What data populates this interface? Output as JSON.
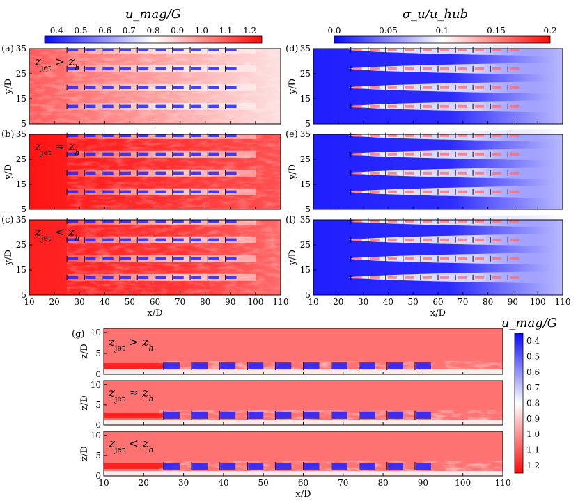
{
  "colorbars": [
    {
      "id": "umag",
      "title": "u_mag/G",
      "ticks": [
        "0.4",
        "0.5",
        "0.6",
        "0.7",
        "0.8",
        "0.9",
        "1.0",
        "1.1",
        "1.2"
      ],
      "range": [
        0.35,
        1.25
      ],
      "colors": [
        "#0a0aff",
        "#ffffff",
        "#ff0a0a"
      ]
    },
    {
      "id": "sigma",
      "title": "σ_u/u_hub",
      "ticks": [
        "0.0",
        "0.05",
        "0.1",
        "0.15",
        "0.2"
      ],
      "range": [
        0,
        0.2
      ],
      "colors": [
        "#0a0aff",
        "#ffffff",
        "#ff0a0a"
      ]
    },
    {
      "id": "umag-g",
      "title": "u_mag/G",
      "ticks": [
        "0.4",
        "0.5",
        "0.6",
        "0.7",
        "0.8",
        "0.9",
        "1.0",
        "1.1",
        "1.2"
      ],
      "range": [
        0.35,
        1.25
      ],
      "colors": [
        "#0a0aff",
        "#ffffff",
        "#ff0a0a"
      ],
      "orientation": "vertical"
    }
  ],
  "panels": [
    {
      "label": "(a)",
      "annotation": {
        "lhs": "z",
        "sub": "jet",
        "op": " > ",
        "rhs": "z",
        "rhs_sub": "h"
      },
      "field": "u_mag/G",
      "view": "top",
      "xlabel": "",
      "ylabel": "y/D",
      "yticks": [
        "5",
        "15",
        "25",
        "35"
      ],
      "xlim": [
        10,
        110
      ],
      "ylim": [
        5,
        35
      ]
    },
    {
      "label": "(b)",
      "annotation": {
        "lhs": "z",
        "sub": "jet",
        "op": " ≈ ",
        "rhs": "z",
        "rhs_sub": "h"
      },
      "field": "u_mag/G",
      "view": "top",
      "xlabel": "",
      "ylabel": "y/D",
      "yticks": [
        "5",
        "15",
        "25",
        "35"
      ],
      "xlim": [
        10,
        110
      ],
      "ylim": [
        5,
        35
      ]
    },
    {
      "label": "(c)",
      "annotation": {
        "lhs": "z",
        "sub": "jet",
        "op": " < ",
        "rhs": "z",
        "rhs_sub": "h"
      },
      "field": "u_mag/G",
      "view": "top",
      "xlabel": "x/D",
      "ylabel": "y/D",
      "yticks": [
        "5",
        "15",
        "25",
        "35"
      ],
      "xlim": [
        10,
        110
      ],
      "ylim": [
        5,
        35
      ]
    },
    {
      "label": "(d)",
      "annotation": null,
      "field": "σ_u/u_hub",
      "view": "top",
      "xlabel": "",
      "ylabel": "y/D",
      "yticks": [
        "5",
        "15",
        "25",
        "35"
      ],
      "xlim": [
        10,
        110
      ],
      "ylim": [
        5,
        35
      ]
    },
    {
      "label": "(e)",
      "annotation": null,
      "field": "σ_u/u_hub",
      "view": "top",
      "xlabel": "",
      "ylabel": "y/D",
      "yticks": [
        "5",
        "15",
        "25",
        "35"
      ],
      "xlim": [
        10,
        110
      ],
      "ylim": [
        5,
        35
      ]
    },
    {
      "label": "(f)",
      "annotation": null,
      "field": "σ_u/u_hub",
      "view": "top",
      "xlabel": "x/D",
      "ylabel": "y/D",
      "yticks": [
        "5",
        "15",
        "25",
        "35"
      ],
      "xlim": [
        10,
        110
      ],
      "ylim": [
        5,
        35
      ]
    },
    {
      "label": "(g)",
      "annotation": {
        "lhs": "z",
        "sub": "jet",
        "op": " > ",
        "rhs": "z",
        "rhs_sub": "h"
      },
      "field": "u_mag/G",
      "view": "side",
      "xlabel": "",
      "ylabel": "z/D",
      "yticks": [
        "0",
        "5",
        "10"
      ],
      "xlim": [
        10,
        110
      ],
      "ylim": [
        0,
        11
      ]
    },
    {
      "label": "",
      "annotation": {
        "lhs": "z",
        "sub": "jet",
        "op": " ≈ ",
        "rhs": "z",
        "rhs_sub": "h"
      },
      "field": "u_mag/G",
      "view": "side",
      "xlabel": "",
      "ylabel": "z/D",
      "yticks": [
        "0",
        "5",
        "10"
      ],
      "xlim": [
        10,
        110
      ],
      "ylim": [
        0,
        11
      ]
    },
    {
      "label": "",
      "annotation": {
        "lhs": "z",
        "sub": "jet",
        "op": " < ",
        "rhs": "z",
        "rhs_sub": "h"
      },
      "field": "u_mag/G",
      "view": "side",
      "xlabel": "x/D",
      "ylabel": "z/D",
      "yticks": [
        "0",
        "5",
        "10"
      ],
      "xlim": [
        10,
        110
      ],
      "ylim": [
        0,
        11
      ]
    }
  ],
  "xticks": [
    "10",
    "20",
    "30",
    "40",
    "50",
    "60",
    "70",
    "80",
    "90",
    "100",
    "110"
  ],
  "chart_data": {
    "type": "heatmap",
    "x_axis": {
      "label": "x/D",
      "range": [
        10,
        110
      ]
    },
    "y_axis_top": {
      "label": "y/D",
      "range": [
        5,
        35
      ]
    },
    "y_axis_side": {
      "label": "z/D",
      "range": [
        0,
        11
      ]
    },
    "turbine_columns_x": [
      25,
      32,
      39,
      46,
      53,
      60,
      67,
      74,
      81,
      88
    ],
    "turbine_rows_y": [
      12,
      19.5,
      27,
      34.5
    ],
    "cases": [
      "z_jet > z_h",
      "z_jet ≈ z_h",
      "z_jet < z_h"
    ],
    "fields": [
      "u_mag/G",
      "σ_u/u_hub"
    ],
    "grid": false,
    "legend": "colorbar"
  }
}
